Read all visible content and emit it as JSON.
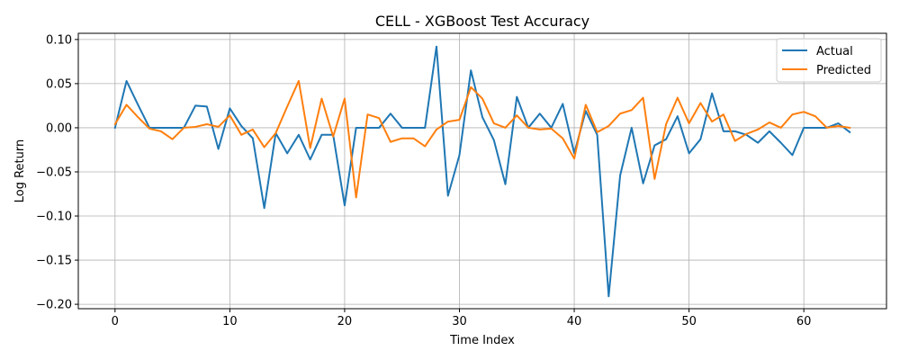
{
  "chart_data": {
    "type": "line",
    "title": "CELL - XGBoost Test Accuracy",
    "xlabel": "Time Index",
    "ylabel": "Log Return",
    "xlim": [
      -3.2,
      67.2
    ],
    "ylim": [
      -0.205,
      0.107
    ],
    "xticks": [
      0,
      10,
      20,
      30,
      40,
      50,
      60
    ],
    "xtick_labels": [
      "0",
      "10",
      "20",
      "30",
      "40",
      "50",
      "60"
    ],
    "yticks": [
      0.1,
      0.05,
      0.0,
      -0.05,
      -0.1,
      -0.15,
      -0.2
    ],
    "ytick_labels": [
      "0.10",
      "0.05",
      "0.00",
      "−0.05",
      "−0.10",
      "−0.15",
      "−0.20"
    ],
    "grid": true,
    "legend_position": "top-right",
    "x": [
      0,
      1,
      2,
      3,
      4,
      5,
      6,
      7,
      8,
      9,
      10,
      11,
      12,
      13,
      14,
      15,
      16,
      17,
      18,
      19,
      20,
      21,
      22,
      23,
      24,
      25,
      26,
      27,
      28,
      29,
      30,
      31,
      32,
      33,
      34,
      35,
      36,
      37,
      38,
      39,
      40,
      41,
      42,
      43,
      44,
      45,
      46,
      47,
      48,
      49,
      50,
      51,
      52,
      53,
      54,
      55,
      56,
      57,
      58,
      59,
      60,
      61,
      62,
      63,
      64
    ],
    "series": [
      {
        "name": "Actual",
        "color": "#1f77b4",
        "values": [
          0.0,
          0.053,
          0.026,
          0.0,
          0.0,
          0.0,
          0.0,
          0.025,
          0.024,
          -0.024,
          0.022,
          0.002,
          -0.012,
          -0.091,
          -0.006,
          -0.029,
          -0.008,
          -0.036,
          -0.008,
          -0.008,
          -0.088,
          0.0,
          0.0,
          0.0,
          0.016,
          0.0,
          0.0,
          0.0,
          0.092,
          -0.077,
          -0.031,
          0.065,
          0.012,
          -0.014,
          -0.064,
          0.035,
          0.0,
          0.016,
          0.0,
          0.027,
          -0.029,
          0.019,
          -0.008,
          -0.191,
          -0.054,
          0.0,
          -0.063,
          -0.02,
          -0.013,
          0.013,
          -0.029,
          -0.013,
          0.039,
          -0.004,
          -0.004,
          -0.008,
          -0.017,
          -0.004,
          -0.017,
          -0.031,
          0.0,
          0.0,
          0.0,
          0.005,
          -0.005
        ]
      },
      {
        "name": "Predicted",
        "color": "#ff7f0e",
        "values": [
          0.004,
          0.026,
          0.012,
          -0.001,
          -0.004,
          -0.013,
          0.0,
          0.001,
          0.004,
          0.001,
          0.014,
          -0.008,
          -0.002,
          -0.022,
          -0.006,
          0.024,
          0.053,
          -0.023,
          0.033,
          -0.01,
          0.033,
          -0.079,
          0.015,
          0.011,
          -0.016,
          -0.012,
          -0.012,
          -0.021,
          -0.002,
          0.007,
          0.009,
          0.046,
          0.033,
          0.005,
          0.0,
          0.014,
          0.0,
          -0.002,
          -0.001,
          -0.012,
          -0.035,
          0.026,
          -0.005,
          0.002,
          0.016,
          0.02,
          0.034,
          -0.058,
          0.004,
          0.034,
          0.005,
          0.028,
          0.007,
          0.015,
          -0.015,
          -0.007,
          -0.002,
          0.006,
          0.0,
          0.015,
          0.018,
          0.013,
          0.0,
          0.002,
          0.0
        ]
      }
    ]
  }
}
